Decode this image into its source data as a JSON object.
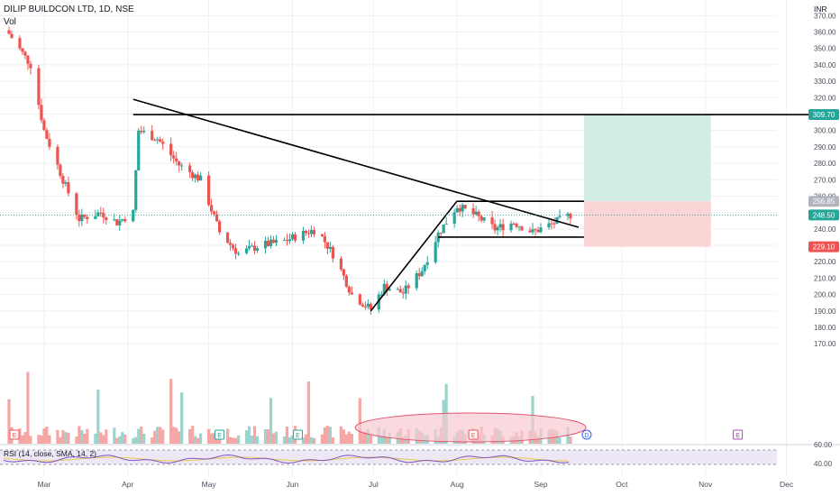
{
  "header": {
    "title": "DILIP BUILDCON LTD, 1D, NSE",
    "volume_label": "Vol",
    "currency": "INR",
    "rsi_label": "RSI (14, close, SMA, 14, 2)"
  },
  "colors": {
    "up": "#26a69a",
    "down": "#ef5350",
    "vol_up": "#9ad4cd",
    "vol_down": "#f5a6a5",
    "target_zone": "#d2ece6",
    "stop_zone": "#fbd5d6",
    "ellipse_fill": "#f8c9d2",
    "ellipse_stroke": "#e0566f",
    "rsi_line": "#7e57c2",
    "rsi_ma": "#e6c84b",
    "rsi_band": "#ede7f6",
    "trendline": "#000000",
    "grid": "#eef0f3",
    "axis_text": "#4a4f5a"
  },
  "chart_data": {
    "type": "candlestick",
    "title": "DILIP BUILDCON LTD, 1D, NSE",
    "y_axis": {
      "ticks": [
        "370.00",
        "360.00",
        "350.00",
        "340.00",
        "330.00",
        "320.00",
        "310.00",
        "300.00",
        "290.00",
        "280.00",
        "270.00",
        "260.00",
        "250.00",
        "240.00",
        "230.00",
        "220.00",
        "210.00",
        "200.00",
        "190.00",
        "180.00",
        "170.00"
      ],
      "range": [
        168,
        376
      ]
    },
    "x_axis": {
      "labels": [
        "Mar",
        "Apr",
        "May",
        "Jun",
        "Jul",
        "Aug",
        "Sep",
        "Oct",
        "Nov",
        "Dec"
      ]
    },
    "price_labels": [
      {
        "text": "309.70",
        "value": 309.7,
        "color": "#26a69a"
      },
      {
        "text": "256.85",
        "value": 256.85,
        "color": "#b2b5be"
      },
      {
        "text": "248.50",
        "value": 248.5,
        "color": "#26a69a"
      },
      {
        "text": "229.10",
        "value": 229.1,
        "color": "#ef5350"
      }
    ],
    "close_series": [
      {
        "date": "2023-02-16",
        "close": 359
      },
      {
        "date": "2023-02-24",
        "close": 340
      },
      {
        "date": "2023-03-01",
        "close": 300
      },
      {
        "date": "2023-03-08",
        "close": 270
      },
      {
        "date": "2023-03-14",
        "close": 246
      },
      {
        "date": "2023-03-22",
        "close": 250
      },
      {
        "date": "2023-03-28",
        "close": 244
      },
      {
        "date": "2023-04-03",
        "close": 250
      },
      {
        "date": "2023-04-05",
        "close": 300
      },
      {
        "date": "2023-04-12",
        "close": 295
      },
      {
        "date": "2023-04-20",
        "close": 279
      },
      {
        "date": "2023-04-28",
        "close": 270
      },
      {
        "date": "2023-05-05",
        "close": 238
      },
      {
        "date": "2023-05-12",
        "close": 225
      },
      {
        "date": "2023-05-20",
        "close": 230
      },
      {
        "date": "2023-05-28",
        "close": 232
      },
      {
        "date": "2023-06-03",
        "close": 236
      },
      {
        "date": "2023-06-10",
        "close": 240
      },
      {
        "date": "2023-06-17",
        "close": 222
      },
      {
        "date": "2023-06-23",
        "close": 200
      },
      {
        "date": "2023-06-30",
        "close": 191
      },
      {
        "date": "2023-07-05",
        "close": 205
      },
      {
        "date": "2023-07-12",
        "close": 201
      },
      {
        "date": "2023-07-19",
        "close": 215
      },
      {
        "date": "2023-07-25",
        "close": 237
      },
      {
        "date": "2023-08-01",
        "close": 254
      },
      {
        "date": "2023-08-08",
        "close": 248
      },
      {
        "date": "2023-08-15",
        "close": 240
      },
      {
        "date": "2023-08-22",
        "close": 244
      },
      {
        "date": "2023-08-29",
        "close": 238
      },
      {
        "date": "2023-09-05",
        "close": 243
      },
      {
        "date": "2023-09-12",
        "close": 248.5
      }
    ],
    "drawings": {
      "resistance_level": 309.7,
      "downtrend_line": [
        {
          "date": "2023-04-03",
          "value": 319
        },
        {
          "date": "2023-09-15",
          "value": 241
        }
      ],
      "rising_line": [
        {
          "date": "2023-06-30",
          "value": 190
        },
        {
          "date": "2023-08-01",
          "value": 257
        }
      ],
      "flag_top": 256.85,
      "flag_bottom": 235,
      "target": 309.7,
      "entry": 256.85,
      "stop": 229.1
    },
    "rsi": {
      "ticks": [
        "60.00",
        "40.00"
      ]
    }
  }
}
